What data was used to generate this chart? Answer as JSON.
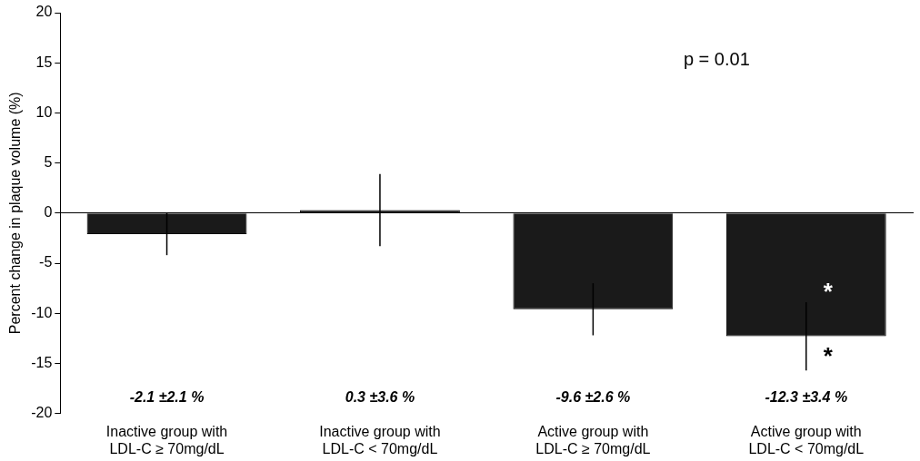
{
  "chart_data": {
    "type": "bar",
    "ylabel": "Percent change in plaque volume (%)",
    "categories": [
      "Inactive group with\nLDL-C ≥ 70mg/dL",
      "Inactive group with\nLDL-C < 70mg/dL",
      "Active group with\nLDL-C ≥ 70mg/dL",
      "Active group with\nLDL-C < 70mg/dL"
    ],
    "values": [
      -2.1,
      0.3,
      -9.6,
      -12.3
    ],
    "errors": [
      2.1,
      3.6,
      2.6,
      3.4
    ],
    "color": "#1a1a1a",
    "ylim": [
      -20,
      20
    ],
    "yticks": [
      -20,
      -15,
      -10,
      -5,
      0,
      5,
      10,
      15,
      20
    ],
    "annotations": [
      "p = 0.01",
      "*",
      "*",
      "-2.1 ±2.1 %",
      "0.3 ±3.6 %",
      "-9.6 ±2.6 %",
      "-12.3 ±3.4 %"
    ]
  }
}
